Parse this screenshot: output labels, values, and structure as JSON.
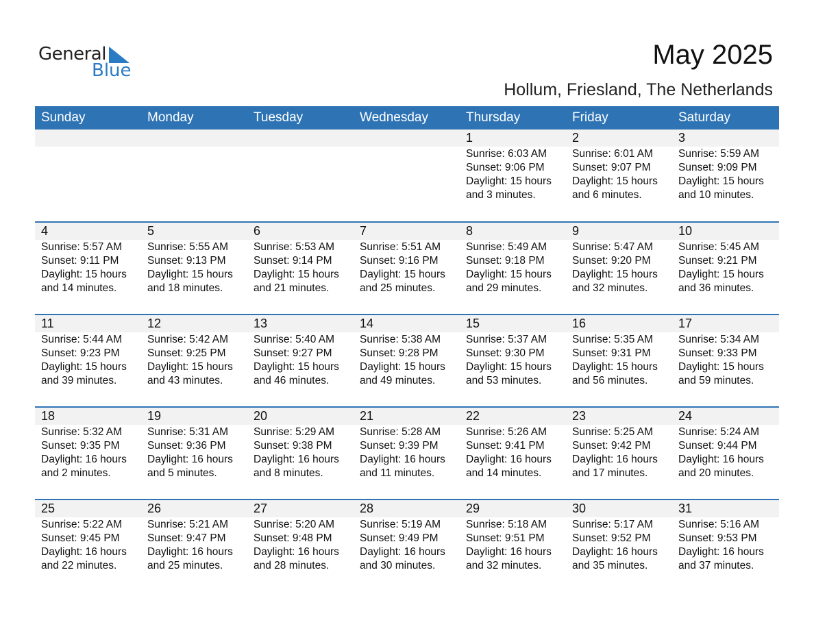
{
  "logo": {
    "word1": "General",
    "word2": "Blue"
  },
  "header": {
    "title": "May 2025",
    "location": "Hollum, Friesland, The Netherlands"
  },
  "colors": {
    "accent": "#2e74b5",
    "band": "#f2f2f2",
    "logo_blue": "#2a7bc4"
  },
  "weekdays": [
    "Sunday",
    "Monday",
    "Tuesday",
    "Wednesday",
    "Thursday",
    "Friday",
    "Saturday"
  ],
  "weeks": [
    [
      null,
      null,
      null,
      null,
      {
        "day": "1",
        "sunrise": "Sunrise: 6:03 AM",
        "sunset": "Sunset: 9:06 PM",
        "daylight": "Daylight: 15 hours",
        "minutes": "and 3 minutes."
      },
      {
        "day": "2",
        "sunrise": "Sunrise: 6:01 AM",
        "sunset": "Sunset: 9:07 PM",
        "daylight": "Daylight: 15 hours",
        "minutes": "and 6 minutes."
      },
      {
        "day": "3",
        "sunrise": "Sunrise: 5:59 AM",
        "sunset": "Sunset: 9:09 PM",
        "daylight": "Daylight: 15 hours",
        "minutes": "and 10 minutes."
      }
    ],
    [
      {
        "day": "4",
        "sunrise": "Sunrise: 5:57 AM",
        "sunset": "Sunset: 9:11 PM",
        "daylight": "Daylight: 15 hours",
        "minutes": "and 14 minutes."
      },
      {
        "day": "5",
        "sunrise": "Sunrise: 5:55 AM",
        "sunset": "Sunset: 9:13 PM",
        "daylight": "Daylight: 15 hours",
        "minutes": "and 18 minutes."
      },
      {
        "day": "6",
        "sunrise": "Sunrise: 5:53 AM",
        "sunset": "Sunset: 9:14 PM",
        "daylight": "Daylight: 15 hours",
        "minutes": "and 21 minutes."
      },
      {
        "day": "7",
        "sunrise": "Sunrise: 5:51 AM",
        "sunset": "Sunset: 9:16 PM",
        "daylight": "Daylight: 15 hours",
        "minutes": "and 25 minutes."
      },
      {
        "day": "8",
        "sunrise": "Sunrise: 5:49 AM",
        "sunset": "Sunset: 9:18 PM",
        "daylight": "Daylight: 15 hours",
        "minutes": "and 29 minutes."
      },
      {
        "day": "9",
        "sunrise": "Sunrise: 5:47 AM",
        "sunset": "Sunset: 9:20 PM",
        "daylight": "Daylight: 15 hours",
        "minutes": "and 32 minutes."
      },
      {
        "day": "10",
        "sunrise": "Sunrise: 5:45 AM",
        "sunset": "Sunset: 9:21 PM",
        "daylight": "Daylight: 15 hours",
        "minutes": "and 36 minutes."
      }
    ],
    [
      {
        "day": "11",
        "sunrise": "Sunrise: 5:44 AM",
        "sunset": "Sunset: 9:23 PM",
        "daylight": "Daylight: 15 hours",
        "minutes": "and 39 minutes."
      },
      {
        "day": "12",
        "sunrise": "Sunrise: 5:42 AM",
        "sunset": "Sunset: 9:25 PM",
        "daylight": "Daylight: 15 hours",
        "minutes": "and 43 minutes."
      },
      {
        "day": "13",
        "sunrise": "Sunrise: 5:40 AM",
        "sunset": "Sunset: 9:27 PM",
        "daylight": "Daylight: 15 hours",
        "minutes": "and 46 minutes."
      },
      {
        "day": "14",
        "sunrise": "Sunrise: 5:38 AM",
        "sunset": "Sunset: 9:28 PM",
        "daylight": "Daylight: 15 hours",
        "minutes": "and 49 minutes."
      },
      {
        "day": "15",
        "sunrise": "Sunrise: 5:37 AM",
        "sunset": "Sunset: 9:30 PM",
        "daylight": "Daylight: 15 hours",
        "minutes": "and 53 minutes."
      },
      {
        "day": "16",
        "sunrise": "Sunrise: 5:35 AM",
        "sunset": "Sunset: 9:31 PM",
        "daylight": "Daylight: 15 hours",
        "minutes": "and 56 minutes."
      },
      {
        "day": "17",
        "sunrise": "Sunrise: 5:34 AM",
        "sunset": "Sunset: 9:33 PM",
        "daylight": "Daylight: 15 hours",
        "minutes": "and 59 minutes."
      }
    ],
    [
      {
        "day": "18",
        "sunrise": "Sunrise: 5:32 AM",
        "sunset": "Sunset: 9:35 PM",
        "daylight": "Daylight: 16 hours",
        "minutes": "and 2 minutes."
      },
      {
        "day": "19",
        "sunrise": "Sunrise: 5:31 AM",
        "sunset": "Sunset: 9:36 PM",
        "daylight": "Daylight: 16 hours",
        "minutes": "and 5 minutes."
      },
      {
        "day": "20",
        "sunrise": "Sunrise: 5:29 AM",
        "sunset": "Sunset: 9:38 PM",
        "daylight": "Daylight: 16 hours",
        "minutes": "and 8 minutes."
      },
      {
        "day": "21",
        "sunrise": "Sunrise: 5:28 AM",
        "sunset": "Sunset: 9:39 PM",
        "daylight": "Daylight: 16 hours",
        "minutes": "and 11 minutes."
      },
      {
        "day": "22",
        "sunrise": "Sunrise: 5:26 AM",
        "sunset": "Sunset: 9:41 PM",
        "daylight": "Daylight: 16 hours",
        "minutes": "and 14 minutes."
      },
      {
        "day": "23",
        "sunrise": "Sunrise: 5:25 AM",
        "sunset": "Sunset: 9:42 PM",
        "daylight": "Daylight: 16 hours",
        "minutes": "and 17 minutes."
      },
      {
        "day": "24",
        "sunrise": "Sunrise: 5:24 AM",
        "sunset": "Sunset: 9:44 PM",
        "daylight": "Daylight: 16 hours",
        "minutes": "and 20 minutes."
      }
    ],
    [
      {
        "day": "25",
        "sunrise": "Sunrise: 5:22 AM",
        "sunset": "Sunset: 9:45 PM",
        "daylight": "Daylight: 16 hours",
        "minutes": "and 22 minutes."
      },
      {
        "day": "26",
        "sunrise": "Sunrise: 5:21 AM",
        "sunset": "Sunset: 9:47 PM",
        "daylight": "Daylight: 16 hours",
        "minutes": "and 25 minutes."
      },
      {
        "day": "27",
        "sunrise": "Sunrise: 5:20 AM",
        "sunset": "Sunset: 9:48 PM",
        "daylight": "Daylight: 16 hours",
        "minutes": "and 28 minutes."
      },
      {
        "day": "28",
        "sunrise": "Sunrise: 5:19 AM",
        "sunset": "Sunset: 9:49 PM",
        "daylight": "Daylight: 16 hours",
        "minutes": "and 30 minutes."
      },
      {
        "day": "29",
        "sunrise": "Sunrise: 5:18 AM",
        "sunset": "Sunset: 9:51 PM",
        "daylight": "Daylight: 16 hours",
        "minutes": "and 32 minutes."
      },
      {
        "day": "30",
        "sunrise": "Sunrise: 5:17 AM",
        "sunset": "Sunset: 9:52 PM",
        "daylight": "Daylight: 16 hours",
        "minutes": "and 35 minutes."
      },
      {
        "day": "31",
        "sunrise": "Sunrise: 5:16 AM",
        "sunset": "Sunset: 9:53 PM",
        "daylight": "Daylight: 16 hours",
        "minutes": "and 37 minutes."
      }
    ]
  ]
}
